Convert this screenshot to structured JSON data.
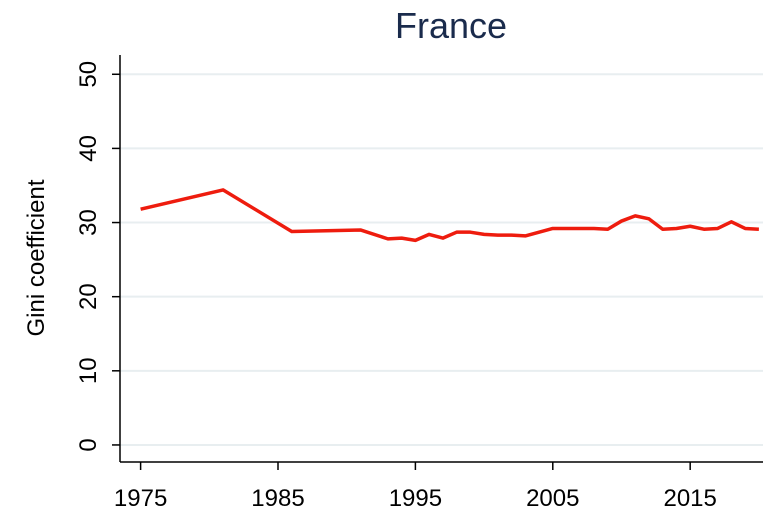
{
  "chart_data": {
    "type": "line",
    "title": "France",
    "y_label": "Gini coefficient",
    "x": [
      1975,
      1981,
      1986,
      1991,
      1993,
      1994,
      1995,
      1996,
      1997,
      1998,
      1999,
      2000,
      2001,
      2002,
      2003,
      2004,
      2005,
      2006,
      2007,
      2008,
      2009,
      2010,
      2011,
      2012,
      2013,
      2014,
      2015,
      2016,
      2017,
      2018,
      2019,
      2020
    ],
    "series": [
      {
        "name": "France",
        "color": "#ee1c0e",
        "values": [
          31.8,
          34.4,
          28.8,
          29.0,
          27.8,
          27.9,
          27.6,
          28.4,
          27.9,
          28.7,
          28.7,
          28.4,
          28.3,
          28.3,
          28.2,
          28.7,
          29.2,
          29.2,
          29.2,
          29.2,
          29.1,
          30.2,
          30.9,
          30.5,
          29.1,
          29.2,
          29.5,
          29.1,
          29.2,
          30.1,
          29.2,
          29.1
        ]
      }
    ],
    "xlim": [
      1973.5,
      2020.3
    ],
    "xticks": [
      1975,
      1985,
      1995,
      2005,
      2015
    ],
    "ylim": [
      -2.3,
      52.6
    ],
    "yticks": [
      0,
      10,
      20,
      30,
      40,
      50
    ],
    "grid": true
  }
}
